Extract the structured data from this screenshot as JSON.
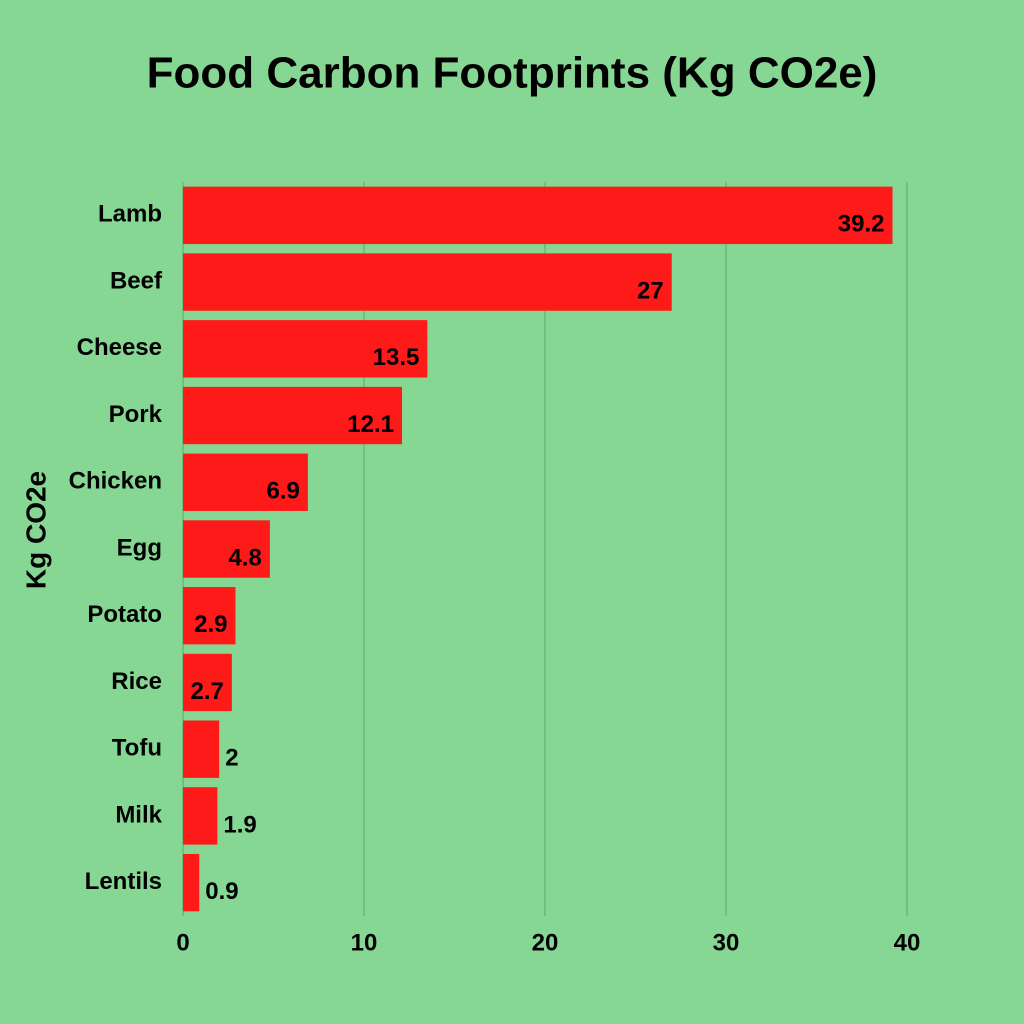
{
  "chart_data": {
    "type": "hbar",
    "title": "Food Carbon Footprints (Kg CO2e)",
    "ylabel": "Kg CO2e",
    "categories": [
      "Lamb",
      "Beef",
      "Cheese",
      "Pork",
      "Chicken",
      "Egg",
      "Potato",
      "Rice",
      "Tofu",
      "Milk",
      "Lentils"
    ],
    "values": [
      39.2,
      27,
      13.5,
      12.1,
      6.9,
      4.8,
      2.9,
      2.7,
      2,
      1.9,
      0.9
    ],
    "color": "#ff1a1a",
    "xlim": [
      0,
      40
    ],
    "xticks": [
      0,
      10,
      20,
      30,
      40
    ],
    "grid": true
  }
}
